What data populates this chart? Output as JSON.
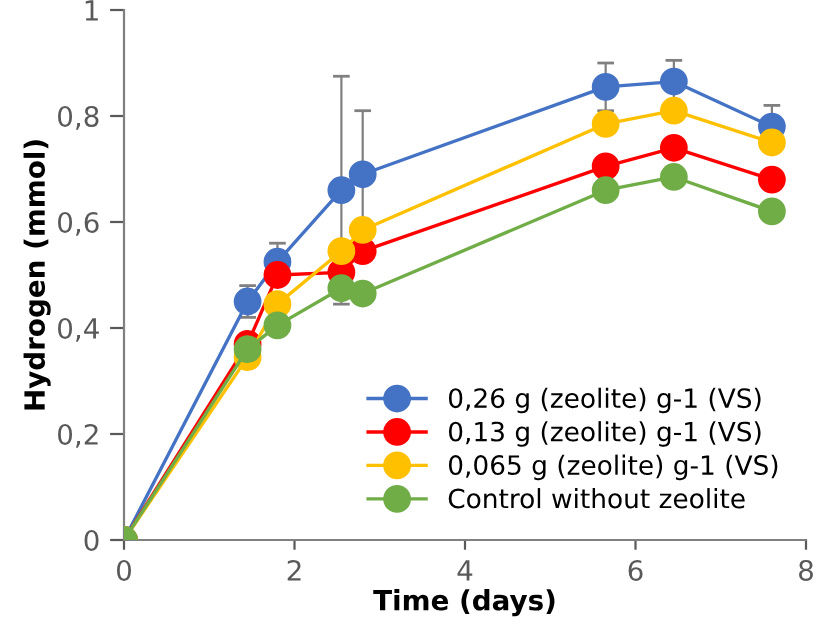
{
  "chart_data": {
    "type": "line",
    "xlabel": "Time (days)",
    "ylabel": "Hydrogen (mmol)",
    "x": [
      0,
      1.45,
      1.8,
      2.55,
      2.8,
      5.65,
      6.45,
      7.6
    ],
    "series": [
      {
        "name": "0,26 g (zeolite) g-1 (VS)",
        "color": "#4472c4",
        "values": [
          0,
          0.45,
          0.525,
          0.66,
          0.69,
          0.855,
          0.865,
          0.78
        ],
        "errors": [
          null,
          0.03,
          0.035,
          0.215,
          0.12,
          0.045,
          0.04,
          0.04
        ]
      },
      {
        "name": "0,13 g (zeolite) g-1 (VS)",
        "color": "#ff0000",
        "values": [
          0,
          0.37,
          0.5,
          0.505,
          0.545,
          0.705,
          0.74,
          0.68
        ]
      },
      {
        "name": "0,065 g (zeolite) g-1 (VS)",
        "color": "#ffc000",
        "values": [
          0,
          0.345,
          0.445,
          0.545,
          0.585,
          0.785,
          0.81,
          0.75
        ]
      },
      {
        "name": "Control without zeolite",
        "color": "#70ad47",
        "values": [
          0,
          0.36,
          0.405,
          0.475,
          0.465,
          0.66,
          0.685,
          0.62
        ]
      }
    ],
    "xlim": [
      0,
      8
    ],
    "xticks": [
      0,
      2,
      4,
      6,
      8
    ],
    "ylim": [
      0,
      1
    ],
    "yticks": [
      {
        "value": 0,
        "label": "0"
      },
      {
        "value": 0.2,
        "label": "0,2"
      },
      {
        "value": 0.4,
        "label": "0,4"
      },
      {
        "value": 0.6,
        "label": "0,6"
      },
      {
        "value": 0.8,
        "label": "0,8"
      },
      {
        "value": 1,
        "label": "1"
      }
    ],
    "marker": "circle",
    "line_style": "solid",
    "grid": false,
    "legend": "bottom right"
  }
}
